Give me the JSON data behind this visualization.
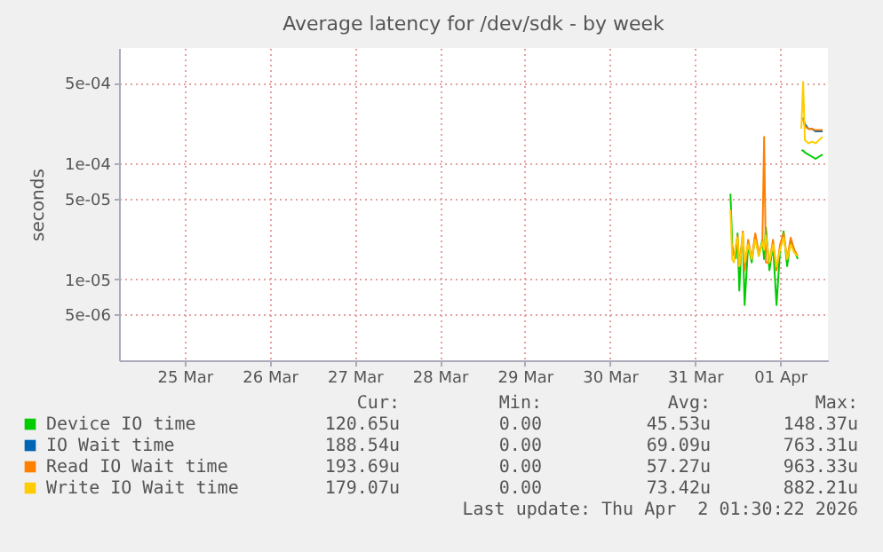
{
  "chart_data": {
    "type": "line",
    "title": "Average latency for /dev/sdk - by week",
    "ylabel": "seconds",
    "log": "y",
    "grid": true,
    "legend": "bottom",
    "marker": "none",
    "line_style": "solid",
    "xlim": [
      "2026-03-24T17:30",
      "2026-04-02T01:30"
    ],
    "xticks": [
      {
        "value": "2026-03-25T12:00",
        "label": "25 Mar"
      },
      {
        "value": "2026-03-26T12:00",
        "label": "26 Mar"
      },
      {
        "value": "2026-03-27T12:00",
        "label": "27 Mar"
      },
      {
        "value": "2026-03-28T12:00",
        "label": "28 Mar"
      },
      {
        "value": "2026-03-29T12:00",
        "label": "29 Mar"
      },
      {
        "value": "2026-03-30T12:00",
        "label": "30 Mar"
      },
      {
        "value": "2026-03-31T12:00",
        "label": "31 Mar"
      },
      {
        "value": "2026-04-01T12:00",
        "label": "01 Apr"
      }
    ],
    "ylim": [
      2e-06,
      0.001
    ],
    "yticks": [
      {
        "value": 5e-06,
        "label": "5e-06"
      },
      {
        "value": 1e-05,
        "label": "1e-05"
      },
      {
        "value": 5e-05,
        "label": "5e-05"
      },
      {
        "value": 0.0001,
        "label": "1e-04"
      },
      {
        "value": 0.0005,
        "label": "5e-04"
      }
    ],
    "x": [
      "2026-03-31T22:00",
      "2026-03-31T22:30",
      "2026-03-31T23:00",
      "2026-03-31T23:30",
      "2026-04-01T00:00",
      "2026-04-01T00:30",
      "2026-04-01T01:00",
      "2026-04-01T01:30",
      "2026-04-01T02:00",
      "2026-04-01T03:00",
      "2026-04-01T04:00",
      "2026-04-01T05:00",
      "2026-04-01T06:00",
      "2026-04-01T07:00",
      "2026-04-01T07:30",
      "2026-04-01T08:00",
      "2026-04-01T09:00",
      "2026-04-01T10:00",
      "2026-04-01T11:00",
      "2026-04-01T12:00",
      "2026-04-01T13:00",
      "2026-04-01T14:00",
      "2026-04-01T15:00",
      "2026-04-01T16:00",
      "2026-04-01T17:00",
      "2026-04-01T17:30",
      "2026-04-01T18:00",
      "2026-04-01T18:30",
      "2026-04-01T19:00",
      "2026-04-01T20:00",
      "2026-04-01T21:00",
      "2026-04-01T22:00",
      "2026-04-01T23:00",
      "2026-04-02T00:00"
    ],
    "series": [
      {
        "name": "Device IO time",
        "color": "#00cc00",
        "values": [
          5.5e-05,
          2e-05,
          null,
          1.5e-05,
          2.5e-05,
          8e-06,
          1.8e-05,
          2.2e-05,
          6e-06,
          2e-05,
          1.4e-05,
          2.4e-05,
          1.6e-05,
          2.2e-05,
          1.5e-05,
          2.8e-05,
          1.2e-05,
          2e-05,
          6e-06,
          1.8e-05,
          2.6e-05,
          1.3e-05,
          2.2e-05,
          1.8e-05,
          1.5e-05,
          null,
          0.00013,
          0.00013,
          0.000125,
          0.00012,
          0.000115,
          0.00011,
          0.000115,
          0.00012
        ]
      },
      {
        "name": "IO Wait time",
        "color": "#0066b3",
        "values": [
          null,
          null,
          null,
          null,
          null,
          null,
          null,
          null,
          null,
          null,
          null,
          null,
          null,
          null,
          null,
          null,
          null,
          null,
          null,
          null,
          null,
          null,
          null,
          null,
          null,
          null,
          null,
          0.00025,
          0.00022,
          0.0002,
          0.0002,
          0.00019,
          0.00019,
          0.00019
        ]
      },
      {
        "name": "Read IO Wait time",
        "color": "#ff8000",
        "values": [
          null,
          2e-05,
          1.6e-05,
          1.8e-05,
          2.4e-05,
          1.3e-05,
          1.8e-05,
          2.6e-05,
          1.2e-05,
          2.2e-05,
          1.5e-05,
          2.5e-05,
          1.7e-05,
          2e-05,
          0.00017,
          1.4e-05,
          1.4e-05,
          2.2e-05,
          1.2e-05,
          2e-05,
          2.5e-05,
          1.5e-05,
          2.3e-05,
          1.8e-05,
          1.6e-05,
          null,
          null,
          0.00024,
          0.00021,
          0.0002,
          0.0002,
          0.000195,
          0.000195,
          0.000195
        ]
      },
      {
        "name": "Write IO Wait time",
        "color": "#ffcc00",
        "values": [
          4e-05,
          1.5e-05,
          1.4e-05,
          2e-05,
          2.3e-05,
          1.3e-05,
          1.7e-05,
          2.5e-05,
          1.4e-05,
          2e-05,
          1.5e-05,
          2.2e-05,
          1.6e-05,
          2.1e-05,
          1.8e-05,
          2.4e-05,
          1.4e-05,
          2e-05,
          1.3e-05,
          1.8e-05,
          2.3e-05,
          1.5e-05,
          2e-05,
          1.7e-05,
          1.6e-05,
          null,
          0.0002,
          0.00051,
          0.00016,
          0.00015,
          0.000155,
          0.00015,
          0.00016,
          0.00017
        ]
      }
    ],
    "annotations": [
      "Cur:",
      "Min:",
      "Avg:",
      "Max:",
      "120.65u",
      "0.00",
      "45.53u",
      "148.37u",
      "188.54u",
      "0.00",
      "69.09u",
      "763.31u",
      "193.69u",
      "0.00",
      "57.27u",
      "963.33u",
      "179.07u",
      "0.00",
      "73.42u",
      "882.21u",
      "Last update: Thu Apr  2 01:30:22 2026"
    ]
  }
}
